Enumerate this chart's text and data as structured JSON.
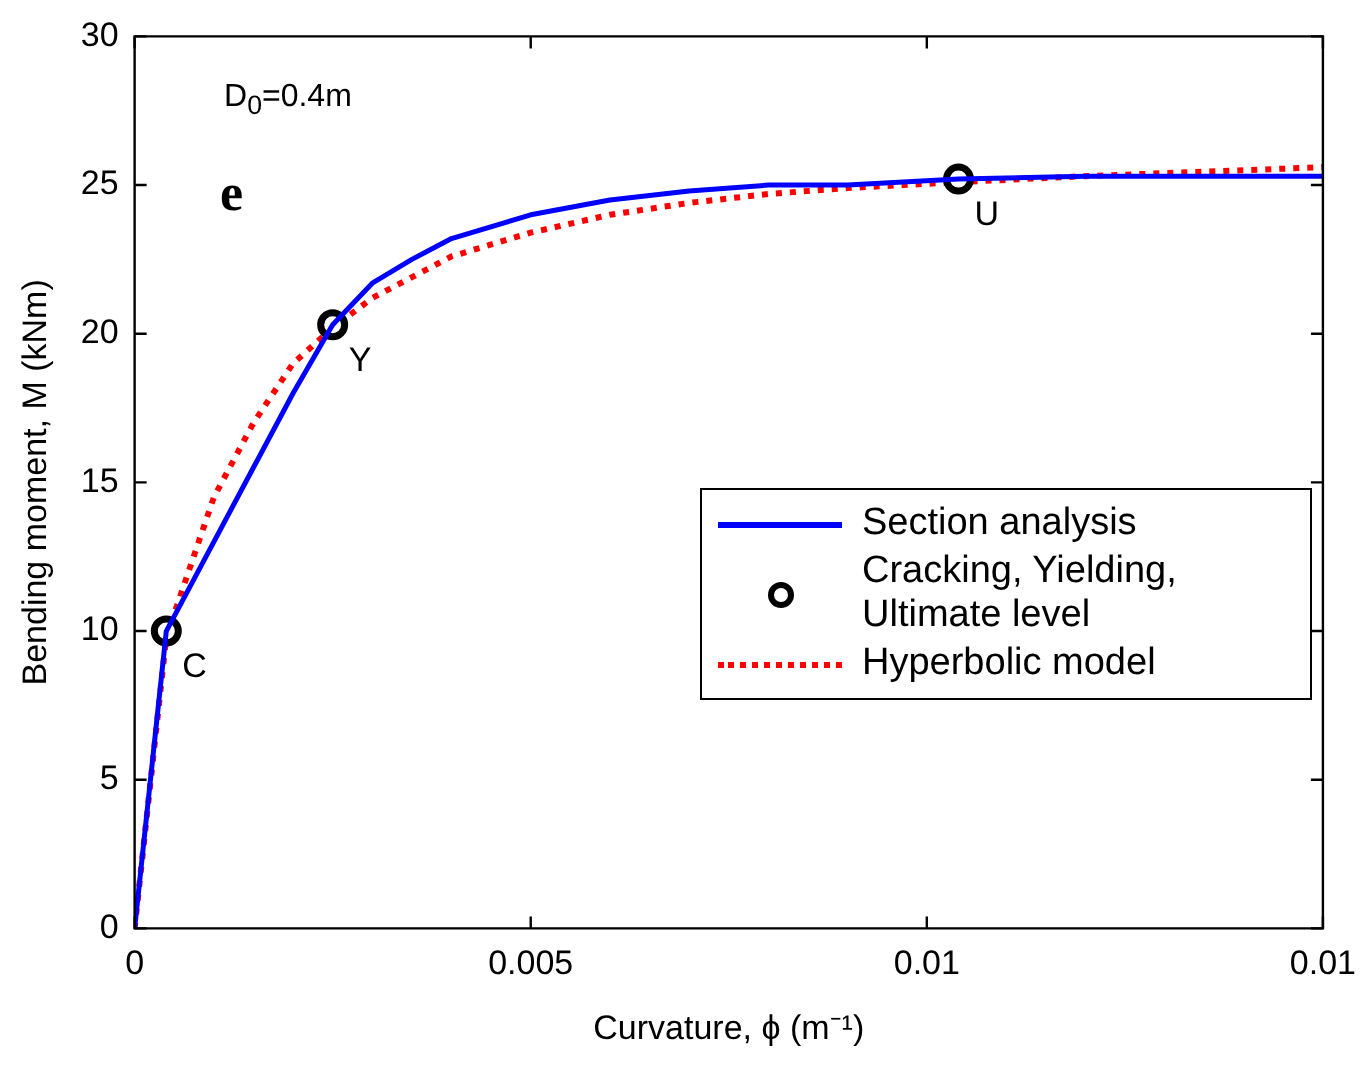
{
  "chart_data": {
    "type": "line",
    "xlabel": "Curvature, ϕ (m⁻¹)",
    "ylabel": "Bending moment, M (kNm)",
    "xlim": [
      0,
      0.015
    ],
    "xticks": [
      0,
      0.005,
      0.01,
      {
        "value": 0.015,
        "label": "0.01"
      }
    ],
    "ylim": [
      0,
      30
    ],
    "yticks": [
      0,
      5,
      10,
      15,
      20,
      25,
      30
    ],
    "grid": false,
    "legend": "right",
    "annotations": [
      "D$_{0}$=0.4m",
      "e",
      {
        "text": "C",
        "x": 0.0004,
        "y": 10
      },
      {
        "text": "Y",
        "x": 0.0025,
        "y": 20.3
      },
      {
        "text": "U",
        "x": 0.0104,
        "y": 25.2
      }
    ],
    "series": [
      {
        "name": "Section analysis",
        "color": "#0000ff",
        "line_style": "solid",
        "x": [
          0,
          0.0004,
          0.0006,
          0.001,
          0.0015,
          0.002,
          0.0025,
          0.003,
          0.0035,
          0.004,
          0.005,
          0.006,
          0.007,
          0.008,
          0.009,
          0.0104,
          0.012,
          0.015
        ],
        "values": [
          0,
          10,
          11,
          13,
          15.5,
          18,
          20.3,
          21.7,
          22.5,
          23.2,
          24,
          24.5,
          24.8,
          25,
          25,
          25.2,
          25.3,
          25.3
        ]
      },
      {
        "name": "Cracking, Yielding, Ultimate level",
        "type": "scatter",
        "color": "#000000",
        "marker": "circle",
        "x": [
          0.0004,
          0.0025,
          0.0104
        ],
        "values": [
          10,
          20.3,
          25.2
        ]
      },
      {
        "name": "Hyperbolic model",
        "color": "#ff0000",
        "line_style": "dotted",
        "x": [
          0,
          0.0004,
          0.001,
          0.0015,
          0.002,
          0.0025,
          0.003,
          0.004,
          0.005,
          0.006,
          0.007,
          0.008,
          0.009,
          0.0104,
          0.012,
          0.015
        ],
        "values": [
          0,
          9.8,
          14.5,
          17,
          19,
          20.2,
          21.2,
          22.6,
          23.4,
          24,
          24.4,
          24.7,
          24.9,
          25.1,
          25.3,
          25.6
        ]
      }
    ]
  }
}
